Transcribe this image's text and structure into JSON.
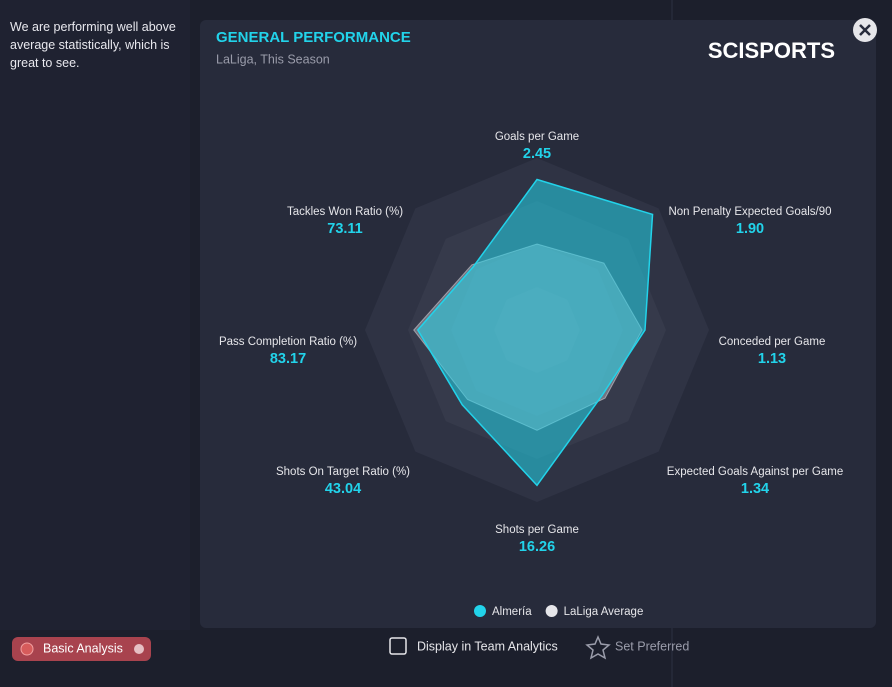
{
  "sidebar_text": "We are performing well above average statistically, which is great to see.",
  "logo": "SCISPORTS",
  "chart_data": {
    "type": "radar",
    "title": "GENERAL PERFORMANCE",
    "subtitle": "LaLiga, This Season",
    "categories": [
      "Goals per Game",
      "Non Penalty Expected Goals/90",
      "Conceded per Game",
      "Expected Goals Against per Game",
      "Shots per Game",
      "Shots On Target Ratio (%)",
      "Pass Completion Ratio (%)",
      "Tackles Won Ratio (%)"
    ],
    "rlims": [
      [
        0,
        2.8
      ],
      [
        0,
        2
      ],
      [
        0,
        1.8
      ],
      [
        0,
        2.5
      ],
      [
        0,
        18
      ],
      [
        0,
        70
      ],
      [
        0,
        120
      ],
      [
        0,
        140
      ]
    ],
    "series": [
      {
        "name": "Almería",
        "color": "#22d3ea",
        "values": [
          2.45,
          1.9,
          1.13,
          1.34,
          16.26,
          43.04,
          83.17,
          73.11
        ],
        "value_labels": [
          "2.45",
          "1.90",
          "1.13",
          "1.34",
          "16.26",
          "43.04",
          "83.17",
          "73.11"
        ]
      },
      {
        "name": "LaLiga Average",
        "color": "#e6e6ea",
        "values": [
          1.4,
          1.1,
          1.1,
          1.4,
          10.5,
          40,
          86,
          75
        ]
      }
    ]
  },
  "footer": {
    "basic_analysis": "Basic Analysis",
    "display_option": "Display in Team Analytics",
    "set_preferred": "Set Preferred"
  }
}
